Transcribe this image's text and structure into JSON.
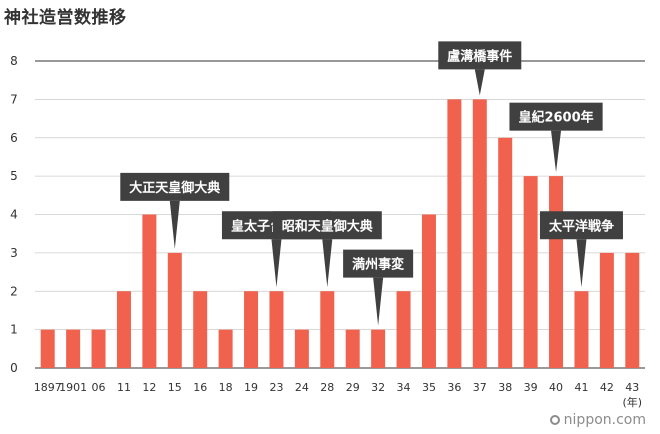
{
  "title": "神社造営数推移",
  "watermark": "nippon.com",
  "colors": {
    "bar": "#f0624d",
    "annotation_bg": "#404040",
    "grid": "#cccccc",
    "axis": "#333333"
  },
  "chart_data": {
    "type": "bar",
    "title": "神社造営数推移",
    "xlabel": "(年)",
    "ylabel": "",
    "ylim": [
      0,
      8
    ],
    "yticks": [
      0,
      1,
      2,
      3,
      4,
      5,
      6,
      7,
      8
    ],
    "grid": true,
    "categories": [
      "1897",
      "1901",
      "06",
      "11",
      "12",
      "15",
      "16",
      "18",
      "19",
      "23",
      "24",
      "28",
      "29",
      "32",
      "34",
      "35",
      "36",
      "37",
      "38",
      "39",
      "40",
      "41",
      "42",
      "43"
    ],
    "values": [
      1,
      1,
      1,
      2,
      4,
      3,
      2,
      1,
      2,
      2,
      1,
      2,
      1,
      1,
      2,
      4,
      7,
      7,
      6,
      5,
      5,
      2,
      3,
      3
    ],
    "annotations": [
      {
        "text": "大正天皇御大典",
        "category": "15"
      },
      {
        "text": "皇太子台湾行啓",
        "category": "23"
      },
      {
        "text": "昭和天皇御大典",
        "category": "28"
      },
      {
        "text": "満州事変",
        "category": "32"
      },
      {
        "text": "盧溝橋事件",
        "category": "37"
      },
      {
        "text": "皇紀2600年",
        "category": "40"
      },
      {
        "text": "太平洋戦争",
        "category": "41"
      }
    ]
  }
}
